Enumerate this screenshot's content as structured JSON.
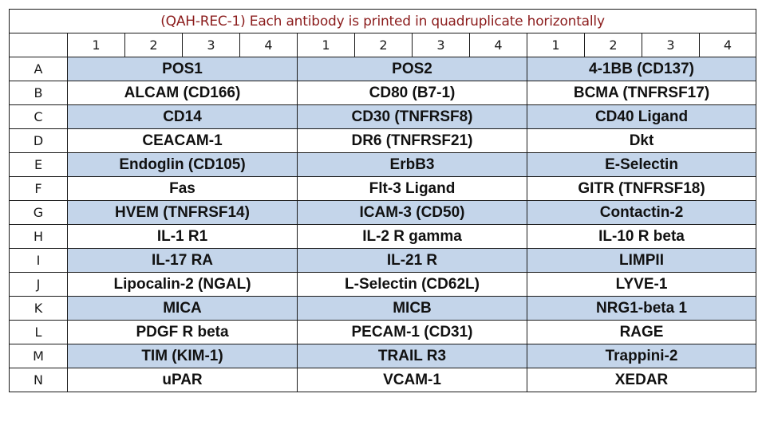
{
  "title": "(QAH-REC-1) Each antibody is printed in quadruplicate horizontally",
  "colors": {
    "shaded": "#c4d5ea",
    "plain": "#ffffff",
    "title": "#8b1c1c"
  },
  "column_numbers": [
    "1",
    "2",
    "3",
    "4",
    "1",
    "2",
    "3",
    "4",
    "1",
    "2",
    "3",
    "4"
  ],
  "rows": [
    {
      "label": "A",
      "cells": [
        "POS1",
        "POS2",
        "4-1BB (CD137)"
      ]
    },
    {
      "label": "B",
      "cells": [
        "ALCAM (CD166)",
        "CD80 (B7-1)",
        "BCMA (TNFRSF17)"
      ]
    },
    {
      "label": "C",
      "cells": [
        "CD14",
        "CD30 (TNFRSF8)",
        "CD40 Ligand"
      ]
    },
    {
      "label": "D",
      "cells": [
        "CEACAM-1",
        "DR6 (TNFRSF21)",
        "Dkt"
      ]
    },
    {
      "label": "E",
      "cells": [
        "Endoglin (CD105)",
        "ErbB3",
        "E-Selectin"
      ]
    },
    {
      "label": "F",
      "cells": [
        "Fas",
        "Flt-3 Ligand",
        "GITR (TNFRSF18)"
      ]
    },
    {
      "label": "G",
      "cells": [
        "HVEM (TNFRSF14)",
        "ICAM-3 (CD50)",
        "Contactin-2"
      ]
    },
    {
      "label": "H",
      "cells": [
        "IL-1 R1",
        "IL-2 R gamma",
        "IL-10 R beta"
      ]
    },
    {
      "label": "I",
      "cells": [
        "IL-17 RA",
        "IL-21 R",
        "LIMPII"
      ]
    },
    {
      "label": "J",
      "cells": [
        "Lipocalin-2 (NGAL)",
        "L-Selectin (CD62L)",
        "LYVE-1"
      ]
    },
    {
      "label": "K",
      "cells": [
        "MICA",
        "MICB",
        "NRG1-beta 1"
      ]
    },
    {
      "label": "L",
      "cells": [
        "PDGF R beta",
        "PECAM-1 (CD31)",
        "RAGE"
      ]
    },
    {
      "label": "M",
      "cells": [
        "TIM (KIM-1)",
        "TRAIL R3",
        "Trappini-2"
      ]
    },
    {
      "label": "N",
      "cells": [
        "uPAR",
        "VCAM-1",
        "XEDAR"
      ]
    }
  ]
}
